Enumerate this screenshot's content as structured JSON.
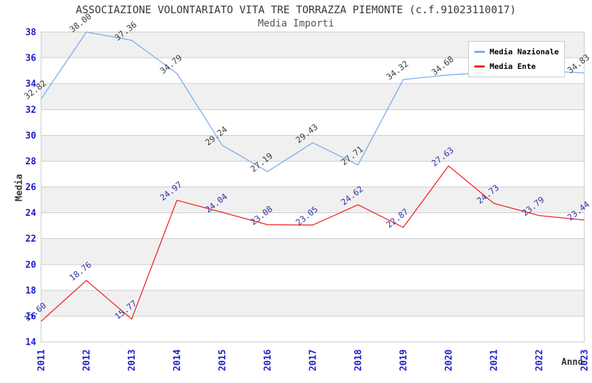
{
  "chart_data": {
    "type": "line",
    "title": "ASSOCIAZIONE VOLONTARIATO VITA TRE TORRAZZA PIEMONTE (c.f.91023110017)",
    "subtitle": "Media Importi",
    "xlabel": "Anno",
    "ylabel": "Media",
    "x_categories": [
      "2011",
      "2012",
      "2013",
      "2014",
      "2015",
      "2016",
      "2017",
      "2018",
      "2019",
      "2020",
      "2021",
      "2022",
      "2023"
    ],
    "ylim": [
      14,
      38
    ],
    "ytick_step": 2,
    "grid": "horizontal-bands",
    "legend_position": "top-right",
    "colors": {
      "tick_label": "#1c1ccc",
      "band_gray": "#f0f0f0",
      "band_white": "#ffffff",
      "gridline": "#cccccc",
      "plot_border": "#c8c8c8"
    },
    "series": [
      {
        "name": "Media Nazionale",
        "color": "#7aabeb",
        "label_color": "#404040",
        "values": [
          32.82,
          38.0,
          37.36,
          34.79,
          29.24,
          27.19,
          29.43,
          27.71,
          34.32,
          34.68,
          34.9,
          35.0,
          34.83
        ],
        "labels": [
          "32.82",
          "38.00",
          "37.36",
          "34.79",
          "29.24",
          "27.19",
          "29.43",
          "27.71",
          "34.32",
          "34.68",
          "",
          "",
          "34.83"
        ]
      },
      {
        "name": "Media Ente",
        "color": "#ee2222",
        "label_color": "#3333aa",
        "values": [
          15.6,
          18.76,
          15.77,
          24.97,
          24.04,
          23.08,
          23.05,
          24.62,
          22.87,
          27.63,
          24.73,
          23.79,
          23.44
        ],
        "labels": [
          "15.60",
          "18.76",
          "15.77",
          "24.97",
          "24.04",
          "23.08",
          "23.05",
          "24.62",
          "22.87",
          "27.63",
          "24.73",
          "23.79",
          "23.44"
        ]
      }
    ]
  }
}
